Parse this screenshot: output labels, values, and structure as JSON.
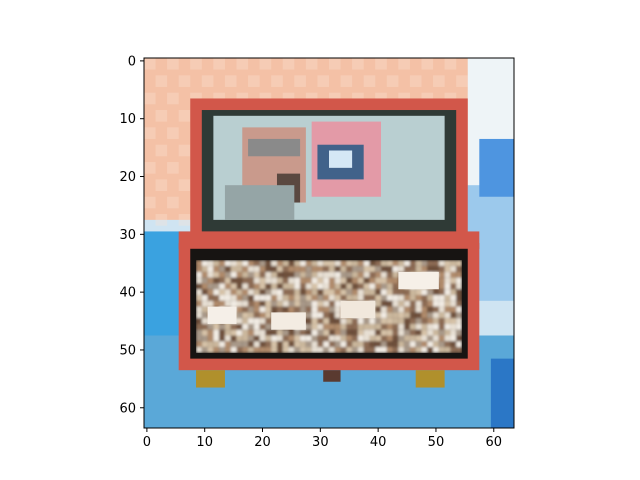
{
  "chart_data": {
    "type": "image",
    "subject": "pixelated low-resolution photo of an open red-trimmed box: the lid holds a photo of a man taking a picture with a camera, the base is filled with shells and stones",
    "image_shape": [
      64,
      64
    ],
    "xlim": [
      -0.5,
      63.5
    ],
    "ylim": [
      63.5,
      -0.5
    ],
    "x_ticks": [
      0,
      10,
      20,
      30,
      40,
      50,
      60
    ],
    "y_ticks": [
      0,
      10,
      20,
      30,
      40,
      50,
      60
    ],
    "grid": false,
    "colors": {
      "top_background": "#f4c1a6",
      "box_trim": "#d2574a",
      "lid_interior": "#2f3a36",
      "lid_photo": "#b9cfd1",
      "face": "#c99a8c",
      "hand": "#e39aa7",
      "camera": "#41628a",
      "shell_pile": "#8c6a52",
      "bottom_background": "#3aa2e0",
      "right_side": "#cfe4f2"
    }
  }
}
